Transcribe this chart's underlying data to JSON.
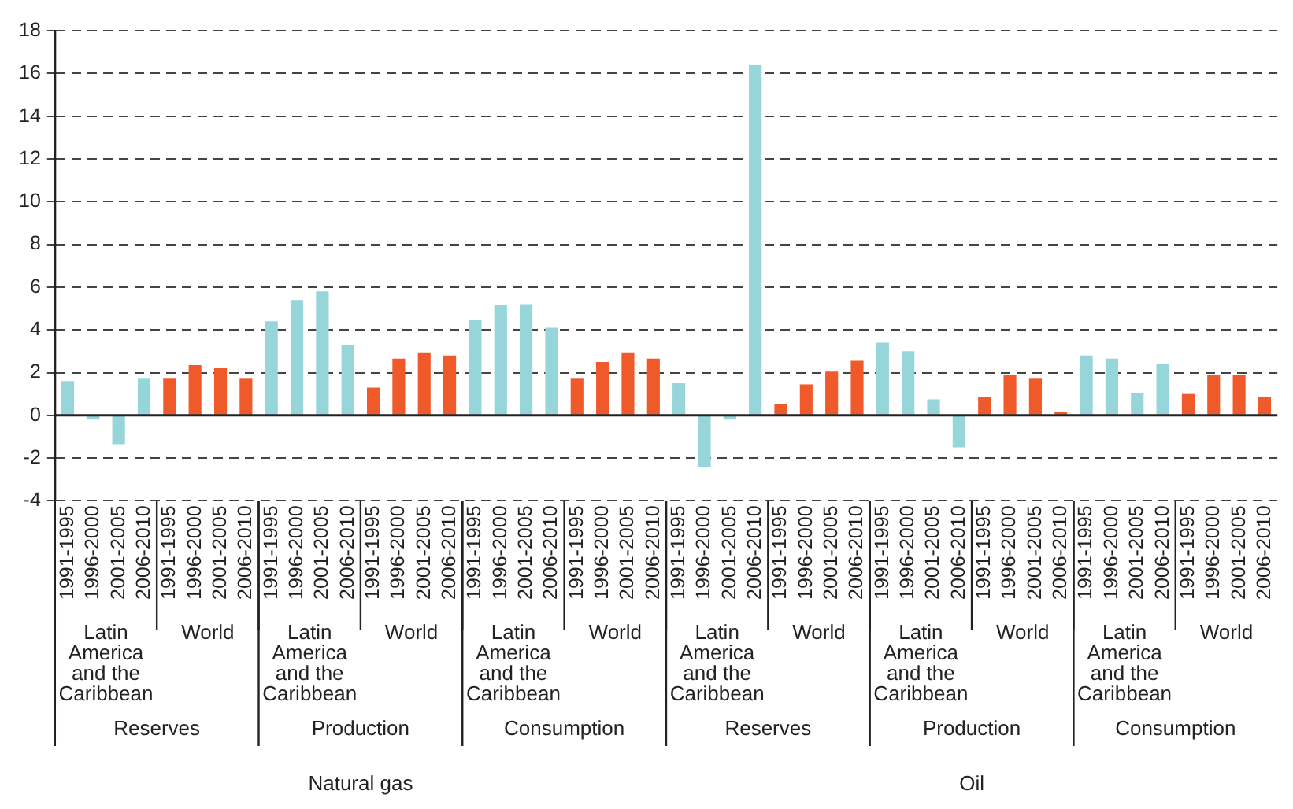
{
  "chart_data": {
    "type": "bar",
    "categories": [
      "1991-1995",
      "1996-2000",
      "2001-2005",
      "2006-2010",
      "1991-1995",
      "1996-2000",
      "2001-2005",
      "2006-2010",
      "1991-1995",
      "1996-2000",
      "2001-2005",
      "2006-2010",
      "1991-1995",
      "1996-2000",
      "2001-2005",
      "2006-2010",
      "1991-1995",
      "1996-2000",
      "2001-2005",
      "2006-2010",
      "1991-1995",
      "1996-2000",
      "2001-2005",
      "2006-2010",
      "1991-1995",
      "1996-2000",
      "2001-2005",
      "2006-2010",
      "1991-1995",
      "1996-2000",
      "2001-2005",
      "2006-2010",
      "1991-1995",
      "1996-2000",
      "2001-2005",
      "2006-2010",
      "1991-1995",
      "1996-2000",
      "2001-2005",
      "2006-2010",
      "1991-1995",
      "1996-2000",
      "2001-2005",
      "2006-2010",
      "1991-1995",
      "1996-2000",
      "2001-2005",
      "2006-2010"
    ],
    "values": [
      1.6,
      -0.2,
      -1.35,
      1.75,
      1.75,
      2.35,
      2.2,
      1.75,
      4.4,
      5.4,
      5.8,
      3.3,
      1.3,
      2.65,
      2.95,
      2.8,
      4.45,
      5.15,
      5.2,
      4.1,
      1.75,
      2.5,
      2.95,
      2.65,
      1.5,
      -2.4,
      -0.2,
      16.4,
      0.55,
      1.45,
      2.05,
      2.55,
      3.4,
      3.0,
      0.75,
      -1.5,
      0.85,
      1.9,
      1.75,
      0.15,
      2.8,
      2.65,
      1.05,
      2.4,
      1.0,
      1.9,
      1.9,
      0.85
    ],
    "colors": [
      "#96d5d9",
      "#96d5d9",
      "#96d5d9",
      "#96d5d9",
      "#f05a2b",
      "#f05a2b",
      "#f05a2b",
      "#f05a2b",
      "#96d5d9",
      "#96d5d9",
      "#96d5d9",
      "#96d5d9",
      "#f05a2b",
      "#f05a2b",
      "#f05a2b",
      "#f05a2b",
      "#96d5d9",
      "#96d5d9",
      "#96d5d9",
      "#96d5d9",
      "#f05a2b",
      "#f05a2b",
      "#f05a2b",
      "#f05a2b",
      "#96d5d9",
      "#96d5d9",
      "#96d5d9",
      "#96d5d9",
      "#f05a2b",
      "#f05a2b",
      "#f05a2b",
      "#f05a2b",
      "#96d5d9",
      "#96d5d9",
      "#96d5d9",
      "#96d5d9",
      "#f05a2b",
      "#f05a2b",
      "#f05a2b",
      "#f05a2b",
      "#96d5d9",
      "#96d5d9",
      "#96d5d9",
      "#96d5d9",
      "#f05a2b",
      "#f05a2b",
      "#f05a2b",
      "#f05a2b"
    ],
    "ylim": [
      -4,
      18
    ],
    "yticks": [
      -4,
      -2,
      0,
      2,
      4,
      6,
      8,
      10,
      12,
      14,
      16,
      18
    ],
    "grid": "y",
    "annotations": [
      "Latin America and the Caribbean",
      "World",
      "Latin America and the Caribbean",
      "World",
      "Latin America and the Caribbean",
      "World",
      "Latin America and the Caribbean",
      "World",
      "Latin America and the Caribbean",
      "World",
      "Latin America and the Caribbean",
      "World",
      "Reserves",
      "Production",
      "Consumption",
      "Reserves",
      "Production",
      "Consumption",
      "Natural gas",
      "Oil"
    ]
  }
}
